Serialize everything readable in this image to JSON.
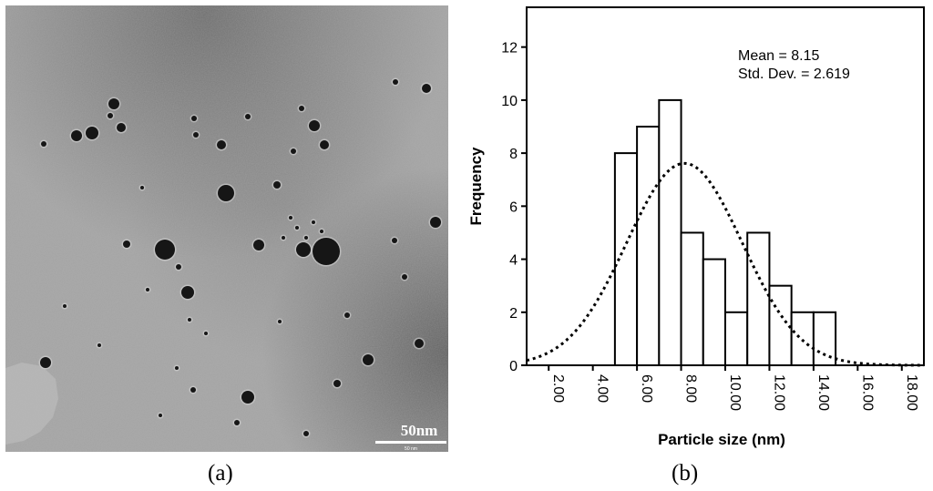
{
  "panels": {
    "left_label": "(a)",
    "right_label": "(b)"
  },
  "micrograph": {
    "scale_bar_text": "50nm",
    "scale_bar_subtext": "50 nm"
  },
  "chart_data": {
    "type": "bar",
    "title": "",
    "xlabel": "Particle size (nm)",
    "ylabel": "Frequency",
    "xlim": [
      1.0,
      19.0
    ],
    "ylim": [
      0,
      13.5
    ],
    "x_ticks": [
      2,
      4,
      6,
      8,
      10,
      12,
      14,
      16,
      18
    ],
    "x_tick_labels": [
      "2.00",
      "4.00",
      "6.00",
      "8.00",
      "10.00",
      "12.00",
      "14.00",
      "16.00",
      "18.00"
    ],
    "y_ticks": [
      0,
      2,
      4,
      6,
      8,
      10,
      12
    ],
    "y_tick_labels": [
      "0",
      "2",
      "4",
      "6",
      "8",
      "10",
      "12"
    ],
    "bin_width": 1,
    "bins": [
      {
        "start": 5,
        "end": 6,
        "value": 8
      },
      {
        "start": 6,
        "end": 7,
        "value": 9
      },
      {
        "start": 7,
        "end": 8,
        "value": 10
      },
      {
        "start": 8,
        "end": 9,
        "value": 5
      },
      {
        "start": 9,
        "end": 10,
        "value": 4
      },
      {
        "start": 10,
        "end": 11,
        "value": 2
      },
      {
        "start": 11,
        "end": 12,
        "value": 5
      },
      {
        "start": 12,
        "end": 13,
        "value": 3
      },
      {
        "start": 13,
        "end": 14,
        "value": 2
      },
      {
        "start": 14,
        "end": 15,
        "value": 2
      }
    ],
    "normal_curve": {
      "mean": 8.15,
      "std": 2.619,
      "n": 50,
      "style": "dotted"
    },
    "stats": {
      "mean_text": "Mean = 8.15",
      "std_text": "Std. Dev. = 2.619"
    },
    "grid": false
  }
}
